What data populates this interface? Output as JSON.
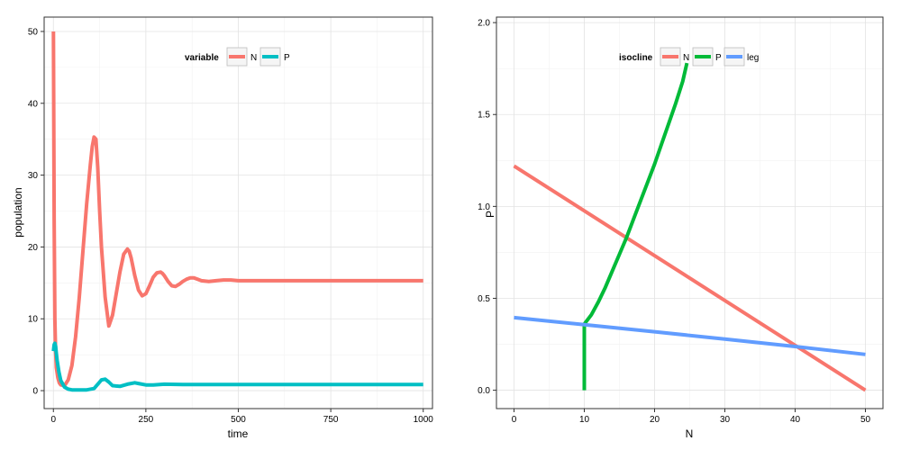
{
  "chart_data": [
    {
      "type": "line",
      "xlabel": "time",
      "ylabel": "population",
      "xlim": [
        -25,
        1025
      ],
      "ylim": [
        -2.5,
        52
      ],
      "xticks": [
        0,
        250,
        500,
        750,
        1000
      ],
      "xtick_labels": [
        "0",
        "250",
        "500",
        "750",
        "1000"
      ],
      "yticks": [
        0,
        10,
        20,
        30,
        40,
        50
      ],
      "ytick_labels": [
        "0",
        "10",
        "20",
        "30",
        "40",
        "50"
      ],
      "grid": true,
      "legend": {
        "title": "variable",
        "placement": "top-center",
        "labels": [
          "N",
          "P"
        ]
      },
      "series": [
        {
          "name": "N",
          "color": "#f8766d",
          "x": [
            0,
            2,
            4,
            6,
            8,
            12,
            16,
            20,
            30,
            40,
            50,
            60,
            70,
            80,
            90,
            100,
            105,
            110,
            115,
            120,
            125,
            130,
            140,
            150,
            160,
            170,
            180,
            190,
            200,
            205,
            210,
            220,
            230,
            240,
            250,
            260,
            270,
            280,
            290,
            295,
            300,
            310,
            320,
            330,
            340,
            350,
            360,
            370,
            380,
            390,
            400,
            420,
            440,
            460,
            480,
            500,
            550,
            600,
            650,
            700,
            800,
            900,
            1000
          ],
          "y": [
            50,
            24,
            10,
            5.5,
            3.2,
            1.8,
            1.1,
            0.8,
            0.7,
            1.5,
            3.5,
            7.5,
            13,
            19.5,
            26,
            31.5,
            34,
            35.3,
            35,
            31,
            25,
            20,
            13,
            9,
            10.5,
            13.5,
            16.5,
            19,
            19.7,
            19.4,
            18.5,
            16,
            14,
            13.2,
            13.5,
            14.6,
            15.8,
            16.4,
            16.5,
            16.3,
            16,
            15.2,
            14.6,
            14.5,
            14.8,
            15.2,
            15.5,
            15.7,
            15.7,
            15.5,
            15.3,
            15.2,
            15.3,
            15.4,
            15.4,
            15.3,
            15.3,
            15.3,
            15.3,
            15.3,
            15.3,
            15.3,
            15.3
          ]
        },
        {
          "name": "P",
          "color": "#00bfc4",
          "x": [
            0,
            2,
            4,
            6,
            8,
            10,
            15,
            20,
            30,
            40,
            50,
            70,
            90,
            110,
            125,
            130,
            140,
            150,
            160,
            180,
            200,
            220,
            230,
            250,
            270,
            300,
            350,
            400,
            500,
            600,
            700,
            800,
            900,
            1000
          ],
          "y": [
            5.5,
            6.4,
            6.6,
            6.2,
            5.2,
            4.2,
            2.6,
            1.4,
            0.5,
            0.2,
            0.1,
            0.1,
            0.1,
            0.3,
            1.2,
            1.5,
            1.6,
            1.2,
            0.7,
            0.6,
            0.9,
            1.1,
            1.0,
            0.8,
            0.8,
            0.9,
            0.85,
            0.85,
            0.85,
            0.85,
            0.85,
            0.85,
            0.85,
            0.85
          ]
        }
      ]
    },
    {
      "type": "line",
      "xlabel": "N",
      "ylabel": "P",
      "xlim": [
        -2.5,
        52.5
      ],
      "ylim": [
        -0.1,
        2.03
      ],
      "xticks": [
        0,
        10,
        20,
        30,
        40,
        50
      ],
      "xtick_labels": [
        "0",
        "10",
        "20",
        "30",
        "40",
        "50"
      ],
      "yticks": [
        0,
        0.5,
        1,
        1.5,
        2
      ],
      "ytick_labels": [
        "0.0",
        "0.5",
        "1.0",
        "1.5",
        "2.0"
      ],
      "grid": true,
      "legend": {
        "title": "isocline",
        "placement": "top-center",
        "labels": [
          "N",
          "P",
          "leg"
        ]
      },
      "series": [
        {
          "name": "N",
          "color": "#f8766d",
          "x": [
            0,
            50
          ],
          "y": [
            1.22,
            0.0
          ]
        },
        {
          "name": "P",
          "color": "#00ba38",
          "x": [
            10,
            10,
            11,
            12,
            13,
            14,
            15,
            16,
            17,
            18,
            19,
            20,
            21,
            22,
            23,
            24,
            24.6
          ],
          "y": [
            0.0,
            0.36,
            0.41,
            0.48,
            0.56,
            0.65,
            0.74,
            0.83,
            0.93,
            1.03,
            1.13,
            1.23,
            1.34,
            1.45,
            1.56,
            1.68,
            1.78
          ]
        },
        {
          "name": "leg",
          "color": "#619cff",
          "x": [
            0,
            10,
            20,
            30,
            40,
            50
          ],
          "y": [
            0.395,
            0.357,
            0.318,
            0.278,
            0.238,
            0.195
          ]
        }
      ]
    }
  ]
}
